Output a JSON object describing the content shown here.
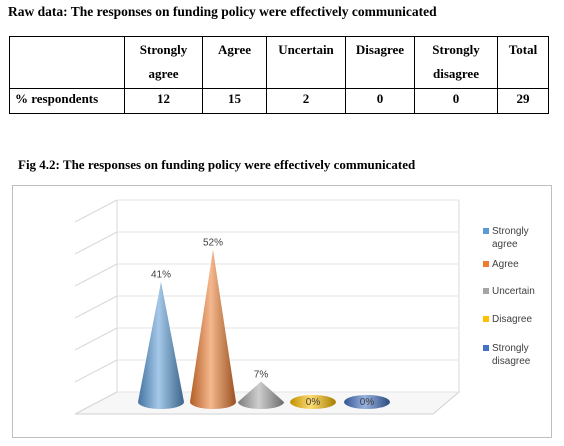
{
  "raw_title": "Raw data: The responses on funding policy were effectively communicated",
  "table": {
    "headers": [
      "",
      "Strongly agree",
      "Agree",
      "Uncertain",
      "Disagree",
      "Strongly disagree",
      "Total"
    ],
    "row_label": "% respondents",
    "values": [
      "12",
      "15",
      "2",
      "0",
      "0",
      "29"
    ]
  },
  "figure_title": "Fig 4.2: The responses on funding policy were effectively communicated",
  "chart_data": {
    "type": "bar",
    "categories": [
      "Strongly agree",
      "Agree",
      "Uncertain",
      "Disagree",
      "Strongly disagree"
    ],
    "values": [
      41,
      52,
      7,
      0,
      0
    ],
    "data_labels": [
      "41%",
      "52%",
      "7%",
      "0%",
      "0%"
    ],
    "colors": [
      "#5b9bd5",
      "#ed7d31",
      "#a5a5a5",
      "#ffc000",
      "#4472c4"
    ],
    "title": "",
    "xlabel": "",
    "ylabel": "",
    "ylim": [
      0,
      60
    ],
    "grid": true,
    "legend": "right",
    "style": "3d-cone"
  }
}
